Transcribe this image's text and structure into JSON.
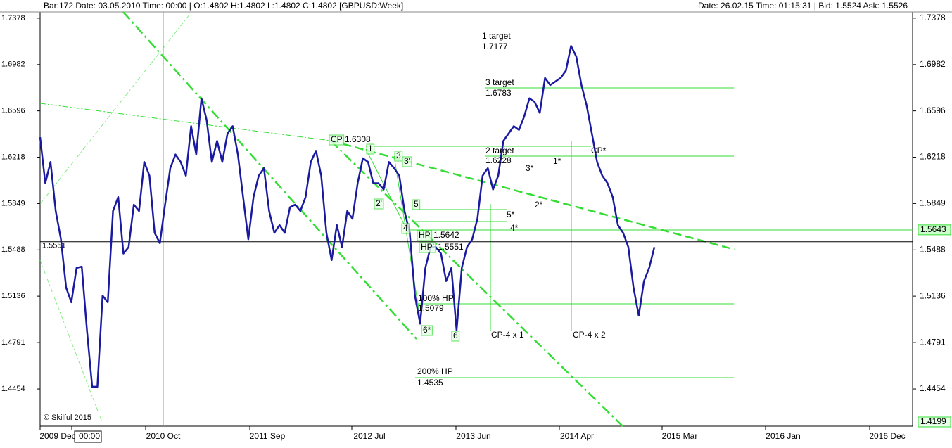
{
  "header": {
    "left": "Bar:172 Date:  03.05.2010 Time:  00:00  | O:1.4802 H:1.4802 L:1.4802 C:1.4802   [GBPUSD:Week]",
    "right": "Date:  26.02.15 Time:  01:15:31 | Bid:  1.5524  Ask:  1.5526"
  },
  "chart_data": {
    "type": "line",
    "log_scale": true,
    "color": "#1a1aa0",
    "ylim": [
      1.4189,
      1.7432
    ],
    "yticks": [
      1.7378,
      1.6982,
      1.6596,
      1.6218,
      1.5849,
      1.5488,
      1.5136,
      1.4791,
      1.4454
    ],
    "price_markers": [
      {
        "value": 1.5643,
        "label": "1.5643"
      },
      {
        "value": 1.4199,
        "label": "1.4199"
      }
    ],
    "hline": {
      "value": 1.5551,
      "label": "1.5551"
    },
    "x_axis_labels": [
      "2009 Dec",
      "00:00",
      "2010 Oct",
      "2011 Sep",
      "2012 Jul",
      "2013 Jun",
      "2014 Apr",
      "2015 Mar",
      "2016 Jan",
      "2016 Dec"
    ],
    "values": [
      1.638,
      1.601,
      1.618,
      1.579,
      1.557,
      1.52,
      1.509,
      1.535,
      1.536,
      1.488,
      1.447,
      1.447,
      1.514,
      1.509,
      1.579,
      1.59,
      1.546,
      1.551,
      1.584,
      1.579,
      1.618,
      1.607,
      1.562,
      1.554,
      1.584,
      1.613,
      1.624,
      1.618,
      1.607,
      1.647,
      1.624,
      1.67,
      1.652,
      1.618,
      1.635,
      1.618,
      1.641,
      1.647,
      1.624,
      1.59,
      1.557,
      1.59,
      1.607,
      1.613,
      1.579,
      1.562,
      1.568,
      1.562,
      1.582,
      1.584,
      1.579,
      1.59,
      1.618,
      1.627,
      1.607,
      1.562,
      1.541,
      1.568,
      1.551,
      1.579,
      1.573,
      1.601,
      1.621,
      1.618,
      1.601,
      1.601,
      1.596,
      1.618,
      1.613,
      1.607,
      1.579,
      1.562,
      1.514,
      1.493,
      1.535,
      1.551,
      1.551,
      1.546,
      1.525,
      1.535,
      1.488,
      1.535,
      1.551,
      1.557,
      1.573,
      1.607,
      1.613,
      1.596,
      1.607,
      1.635,
      1.641,
      1.647,
      1.644,
      1.655,
      1.67,
      1.667,
      1.658,
      1.687,
      1.681,
      1.684,
      1.687,
      1.693,
      1.714,
      1.705,
      1.681,
      1.664,
      1.641,
      1.618,
      1.607,
      1.601,
      1.59,
      1.568,
      1.562,
      1.551,
      1.52,
      1.499,
      1.525,
      1.535,
      1.551
    ],
    "annotations": [
      "1 target",
      "1.7177",
      "3 target",
      "1.6783",
      "2 target",
      "1.6228",
      "CP",
      "1.6308",
      "1",
      "3",
      "3'",
      "2'",
      "5",
      "4",
      "HP",
      "1.5642",
      "HP'",
      "1.5551",
      "100% HP",
      "1.5079",
      "6*",
      "6",
      "200% HP",
      "1.4535",
      "CP-4 x 1",
      "CP-4 x 2",
      "3*",
      "1*",
      "2*",
      "5*",
      "4*",
      "CP*",
      "© Skilful 2015"
    ]
  }
}
